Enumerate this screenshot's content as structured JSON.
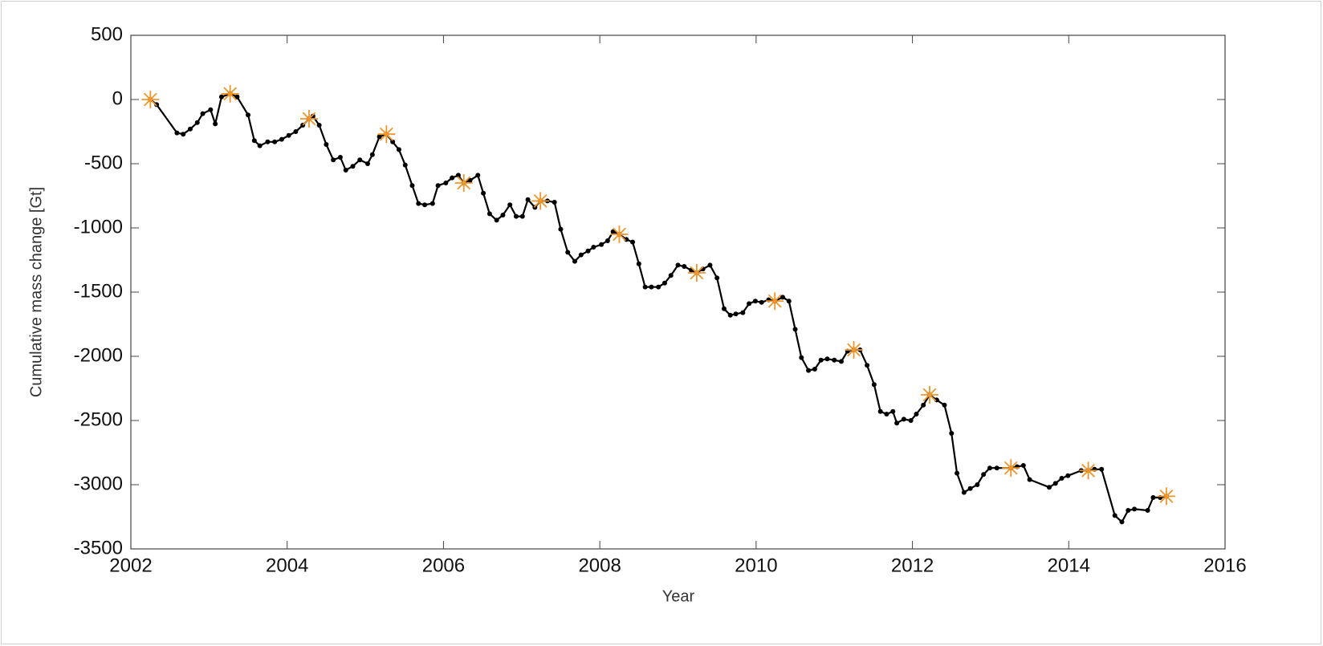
{
  "chart_data": {
    "type": "line",
    "x_label": "Year",
    "y_label": "Cumulative mass change [Gt]",
    "xlim": [
      2002,
      2016
    ],
    "xticks": [
      2002,
      2004,
      2006,
      2008,
      2010,
      2012,
      2014,
      2016
    ],
    "ylim": [
      -3500,
      500
    ],
    "yticks": [
      500,
      0,
      -500,
      -1000,
      -1500,
      -2000,
      -2500,
      -3000,
      -3500
    ],
    "grid": false,
    "series": [
      {
        "color": "#000000",
        "marker": "dot",
        "line": true,
        "x": [
          2002.25,
          2002.33,
          2002.59,
          2002.67,
          2002.76,
          2002.85,
          2002.92,
          2003.02,
          2003.08,
          2003.16,
          2003.27,
          2003.36,
          2003.5,
          2003.58,
          2003.65,
          2003.75,
          2003.84,
          2003.93,
          2004.02,
          2004.11,
          2004.2,
          2004.28,
          2004.33,
          2004.41,
          2004.5,
          2004.59,
          2004.68,
          2004.75,
          2004.84,
          2004.93,
          2005.03,
          2005.09,
          2005.18,
          2005.27,
          2005.35,
          2005.43,
          2005.51,
          2005.6,
          2005.68,
          2005.76,
          2005.86,
          2005.93,
          2006.03,
          2006.11,
          2006.19,
          2006.26,
          2006.34,
          2006.44,
          2006.51,
          2006.59,
          2006.68,
          2006.76,
          2006.85,
          2006.93,
          2007.01,
          2007.08,
          2007.17,
          2007.24,
          2007.33,
          2007.42,
          2007.5,
          2007.59,
          2007.68,
          2007.76,
          2007.85,
          2007.92,
          2008.02,
          2008.1,
          2008.17,
          2008.25,
          2008.34,
          2008.42,
          2008.5,
          2008.58,
          2008.66,
          2008.75,
          2008.83,
          2008.91,
          2009.0,
          2009.08,
          2009.17,
          2009.24,
          2009.32,
          2009.41,
          2009.5,
          2009.59,
          2009.67,
          2009.74,
          2009.83,
          2009.91,
          2009.99,
          2010.07,
          2010.16,
          2010.24,
          2010.34,
          2010.42,
          2010.5,
          2010.58,
          2010.67,
          2010.75,
          2010.83,
          2010.91,
          2011.0,
          2011.09,
          2011.17,
          2011.25,
          2011.33,
          2011.42,
          2011.51,
          2011.59,
          2011.67,
          2011.75,
          2011.8,
          2011.89,
          2011.98,
          2012.05,
          2012.14,
          2012.22,
          2012.31,
          2012.41,
          2012.5,
          2012.57,
          2012.66,
          2012.74,
          2012.83,
          2012.91,
          2012.99,
          2013.08,
          2013.26,
          2013.34,
          2013.42,
          2013.5,
          2013.75,
          2013.83,
          2013.91,
          2013.99,
          2014.16,
          2014.25,
          2014.33,
          2014.42,
          2014.59,
          2014.68,
          2014.76,
          2014.84,
          2015.01,
          2015.08,
          2015.17,
          2015.25
        ],
        "values": [
          0,
          -40,
          -260,
          -270,
          -230,
          -180,
          -110,
          -80,
          -190,
          20,
          45,
          20,
          -120,
          -320,
          -360,
          -330,
          -330,
          -310,
          -280,
          -250,
          -200,
          -150,
          -130,
          -200,
          -350,
          -470,
          -450,
          -550,
          -520,
          -470,
          -500,
          -430,
          -290,
          -270,
          -330,
          -390,
          -510,
          -670,
          -810,
          -820,
          -810,
          -670,
          -650,
          -610,
          -590,
          -650,
          -630,
          -590,
          -730,
          -890,
          -940,
          -900,
          -820,
          -910,
          -910,
          -780,
          -840,
          -790,
          -790,
          -800,
          -1010,
          -1190,
          -1260,
          -1210,
          -1180,
          -1150,
          -1130,
          -1100,
          -1030,
          -1050,
          -1090,
          -1110,
          -1280,
          -1460,
          -1460,
          -1460,
          -1430,
          -1370,
          -1290,
          -1300,
          -1330,
          -1350,
          -1320,
          -1290,
          -1390,
          -1630,
          -1680,
          -1670,
          -1660,
          -1590,
          -1570,
          -1580,
          -1560,
          -1570,
          -1540,
          -1570,
          -1790,
          -2010,
          -2110,
          -2100,
          -2030,
          -2020,
          -2030,
          -2040,
          -1960,
          -1950,
          -1950,
          -2070,
          -2220,
          -2430,
          -2450,
          -2430,
          -2520,
          -2490,
          -2500,
          -2450,
          -2380,
          -2300,
          -2340,
          -2380,
          -2600,
          -2910,
          -3060,
          -3030,
          -3000,
          -2920,
          -2870,
          -2870,
          -2870,
          -2860,
          -2850,
          -2960,
          -3020,
          -2990,
          -2950,
          -2930,
          -2890,
          -2890,
          -2880,
          -2880,
          -3240,
          -3290,
          -3200,
          -3190,
          -3200,
          -3100,
          -3100,
          -3090
        ]
      },
      {
        "color": "#f0962a",
        "marker": "star",
        "line": false,
        "x": [
          2002.25,
          2003.27,
          2004.28,
          2005.27,
          2006.26,
          2007.24,
          2008.25,
          2009.24,
          2010.24,
          2011.25,
          2012.22,
          2013.26,
          2014.25,
          2015.25
        ],
        "values": [
          0,
          45,
          -150,
          -270,
          -650,
          -790,
          -1050,
          -1350,
          -1570,
          -1950,
          -2300,
          -2870,
          -2890,
          -3090
        ]
      }
    ]
  }
}
